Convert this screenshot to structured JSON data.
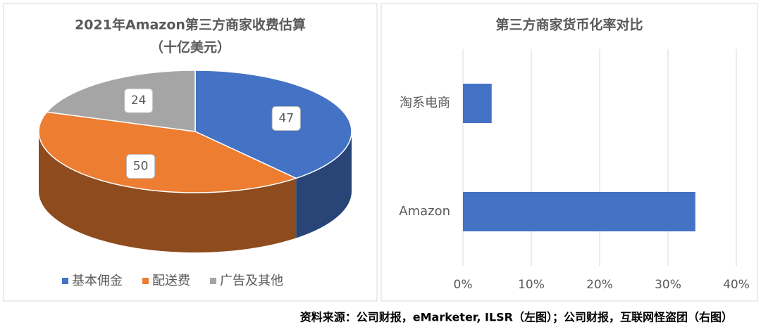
{
  "chart_data": [
    {
      "type": "pie3d",
      "title": "2021年Amazon第三方商家收费估算",
      "subtitle": "（十亿美元）",
      "categories": [
        "基本佣金",
        "配送费",
        "广告及其他"
      ],
      "values": [
        47,
        50,
        24
      ],
      "colors": [
        "#4472c4",
        "#ed7d31",
        "#a5a5a5"
      ],
      "legend": "bottom"
    },
    {
      "type": "hbar",
      "title": "第三方商家货币化率对比",
      "categories": [
        "淘系电商",
        "Amazon"
      ],
      "values": [
        4.2,
        34
      ],
      "color": "#4472c4",
      "xlim": [
        0,
        40
      ],
      "xticks": [
        {
          "value": 0,
          "label": "0%"
        },
        {
          "value": 10,
          "label": "10%"
        },
        {
          "value": 20,
          "label": "20%"
        },
        {
          "value": 30,
          "label": "30%"
        },
        {
          "value": 40,
          "label": "40%"
        }
      ],
      "grid": true
    }
  ],
  "source": "资料来源：公司财报，eMarketer, ILSR（左图）；公司财报，互联网怪盗团（右图）"
}
